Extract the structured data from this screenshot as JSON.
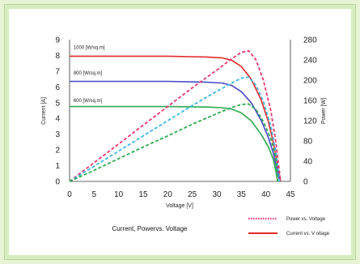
{
  "chart_data": {
    "type": "line",
    "title": "Current, Powervs. Voltage",
    "xlabel": "Voltage [V]",
    "ylabel_left": "Current [A]",
    "ylabel_right": "Power [W]",
    "xlim": [
      0,
      45
    ],
    "ylim_left": [
      0,
      9
    ],
    "ylim_right": [
      0,
      280
    ],
    "xticks": [
      0,
      5,
      10,
      15,
      20,
      25,
      30,
      35,
      40,
      45
    ],
    "yticks_left": [
      0,
      1,
      2,
      3,
      4,
      5,
      6,
      7,
      8,
      9
    ],
    "yticks_right": [
      0,
      40,
      80,
      120,
      160,
      200,
      240,
      280
    ],
    "grid": false,
    "legend": [
      {
        "label": "Power vs. Voltage",
        "style": "dotted",
        "color": "#e5386c"
      },
      {
        "label": "Current vs. V oltage",
        "style": "solid",
        "color": "#e22a2a"
      }
    ],
    "annotations": [
      {
        "text": "1000 [W/sq.m]",
        "x": 0.8,
        "y": 8.4
      },
      {
        "text": "800 [W/sq.m]",
        "x": 0.8,
        "y": 6.8
      },
      {
        "text": "600 [W/sq.m]",
        "x": 0.8,
        "y": 5.05
      }
    ],
    "series": [
      {
        "axis": "left",
        "style": "solid",
        "color": "#e22a2a",
        "x": [
          0,
          10,
          20,
          28,
          31,
          33,
          35,
          37,
          39,
          40.5,
          41.5,
          42.5,
          43
        ],
        "y": [
          7.95,
          7.95,
          7.95,
          7.9,
          7.85,
          7.7,
          7.3,
          6.5,
          5.2,
          3.8,
          2.5,
          0.8,
          0
        ]
      },
      {
        "axis": "left",
        "style": "solid",
        "color": "#4646c8",
        "x": [
          0,
          10,
          20,
          28,
          31,
          33,
          35,
          37,
          39,
          40.5,
          41.5,
          42.3,
          42.8
        ],
        "y": [
          6.35,
          6.35,
          6.35,
          6.3,
          6.25,
          6.1,
          5.7,
          5.0,
          3.9,
          2.8,
          1.8,
          0.7,
          0
        ]
      },
      {
        "axis": "left",
        "style": "solid",
        "color": "#2eaa52",
        "x": [
          0,
          10,
          20,
          28,
          31,
          33,
          35,
          37,
          39,
          40.5,
          41.5,
          42.0,
          42.4
        ],
        "y": [
          4.75,
          4.75,
          4.75,
          4.72,
          4.68,
          4.6,
          4.35,
          3.85,
          3.0,
          2.2,
          1.4,
          0.7,
          0
        ]
      },
      {
        "axis": "right",
        "style": "dashed",
        "color": "#e5386c",
        "x": [
          0,
          5,
          10,
          15,
          20,
          25,
          30,
          33,
          35,
          36.5,
          38,
          39.5,
          41,
          42,
          43
        ],
        "y": [
          0,
          37,
          74,
          111,
          148,
          185,
          220,
          242,
          255,
          258,
          240,
          200,
          140,
          80,
          0
        ]
      },
      {
        "axis": "right",
        "style": "dashed",
        "color": "#3fb8e8",
        "x": [
          0,
          5,
          10,
          15,
          20,
          25,
          30,
          33,
          35,
          36.5,
          38,
          39.5,
          41,
          42,
          42.8
        ],
        "y": [
          0,
          30,
          60,
          90,
          120,
          150,
          178,
          194,
          204,
          206,
          190,
          158,
          110,
          60,
          0
        ]
      },
      {
        "axis": "right",
        "style": "dashed",
        "color": "#2eaa52",
        "x": [
          0,
          5,
          10,
          15,
          20,
          25,
          30,
          33,
          35,
          36.5,
          38,
          39.5,
          41,
          42,
          42.4
        ],
        "y": [
          0,
          22,
          45,
          68,
          90,
          113,
          134,
          146,
          152,
          153,
          142,
          118,
          85,
          48,
          0
        ]
      }
    ]
  }
}
